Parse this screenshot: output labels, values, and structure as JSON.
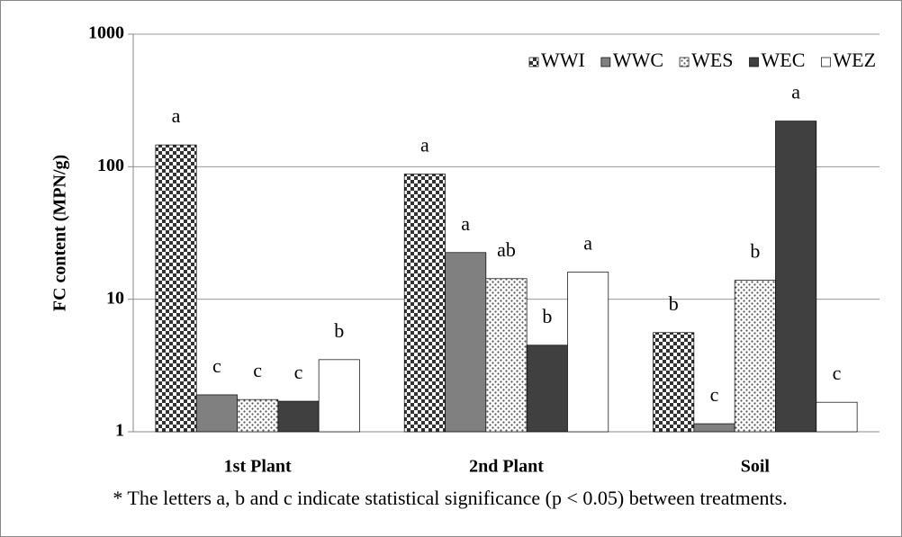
{
  "chart_data": {
    "type": "bar",
    "y_label": "FC content (MPN/g)",
    "categories": [
      "1st Plant",
      "2nd Plant",
      "Soil"
    ],
    "series": [
      {
        "name": "WWI",
        "color": "#333333",
        "pattern": "checker",
        "values": [
          146,
          88,
          5.6
        ],
        "letters": [
          "a",
          "a",
          "b"
        ]
      },
      {
        "name": "WWC",
        "color": "#808080",
        "pattern": null,
        "values": [
          1.9,
          22.5,
          1.15
        ],
        "letters": [
          "c",
          "a",
          "c"
        ]
      },
      {
        "name": "WES",
        "color": "#555555",
        "pattern": "dots",
        "values": [
          1.75,
          14.3,
          13.9
        ],
        "letters": [
          "c",
          "ab",
          "b"
        ]
      },
      {
        "name": "WEC",
        "color": "#404040",
        "pattern": null,
        "values": [
          1.7,
          4.5,
          221
        ],
        "letters": [
          "c",
          "b",
          "a"
        ]
      },
      {
        "name": "WEZ",
        "color": "#ffffff",
        "pattern": null,
        "values": [
          3.5,
          16,
          1.67
        ],
        "letters": [
          "b",
          "a",
          "c"
        ]
      }
    ],
    "ylim": [
      1,
      1000
    ],
    "yticks": [
      1,
      10,
      100,
      1000
    ],
    "log_scale": true,
    "grid": true,
    "legend": "top-right",
    "footnote": "* The letters a, b and c indicate statistical significance (p < 0.05) between treatments."
  }
}
